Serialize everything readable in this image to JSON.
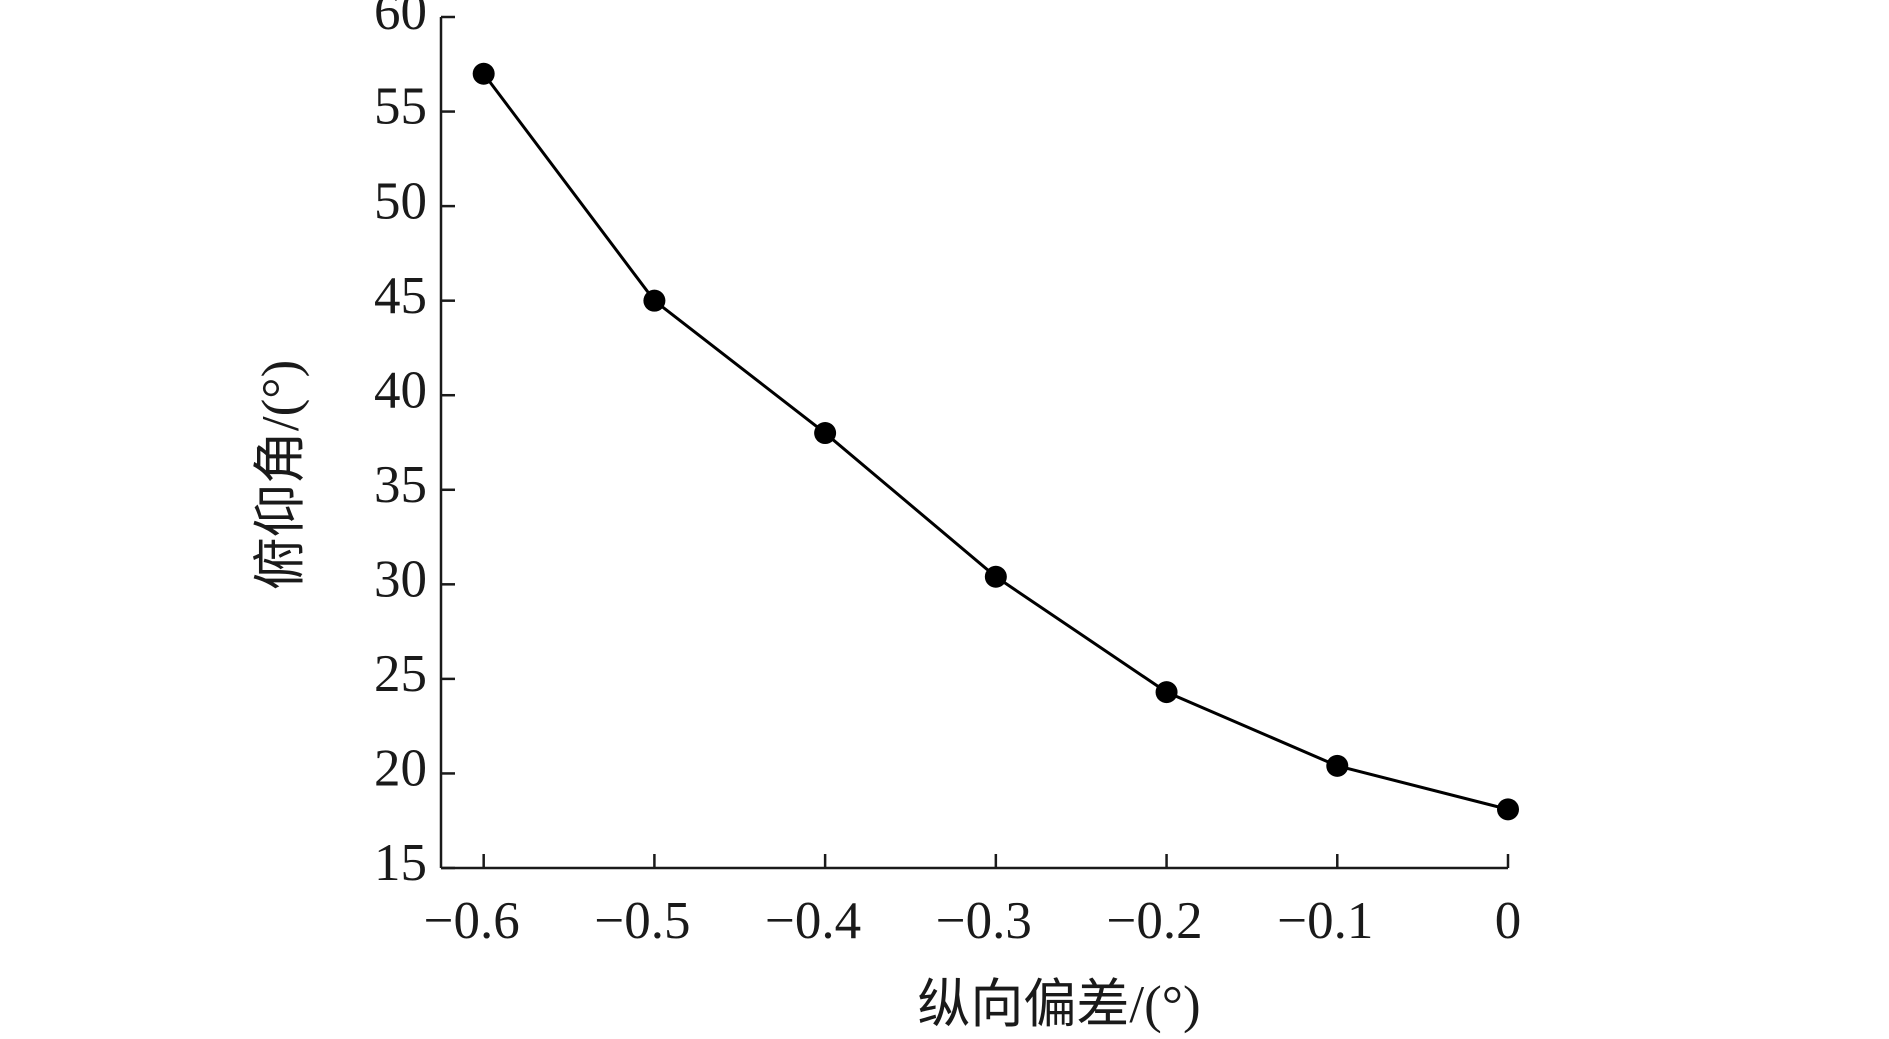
{
  "chart_data": {
    "type": "line",
    "x_label": "纵向偏差/(°)",
    "y_label": "俯仰角/(°)",
    "x": [
      -0.6,
      -0.5,
      -0.4,
      -0.3,
      -0.2,
      -0.1,
      0
    ],
    "series": [
      {
        "color": "#000000",
        "values": [
          57,
          45,
          38,
          30.4,
          24.3,
          20.4,
          18.1
        ]
      }
    ],
    "xlim": [
      -0.625,
      0
    ],
    "xticks": [
      {
        "value": -0.6,
        "label": "−0.6"
      },
      {
        "value": -0.5,
        "label": "−0.5"
      },
      {
        "value": -0.4,
        "label": "−0.4"
      },
      {
        "value": -0.3,
        "label": "−0.3"
      },
      {
        "value": -0.2,
        "label": "−0.2"
      },
      {
        "value": -0.1,
        "label": "−0.1"
      },
      0
    ],
    "ylim": [
      15,
      60
    ],
    "yticks": [
      15,
      20,
      25,
      30,
      35,
      40,
      45,
      50,
      55,
      60
    ],
    "grid": false
  }
}
